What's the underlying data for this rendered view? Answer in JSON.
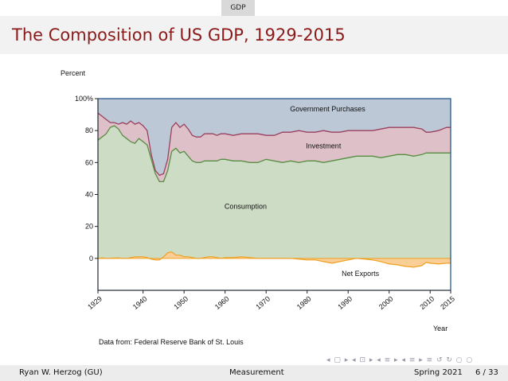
{
  "header": {
    "section": "GDP"
  },
  "slide": {
    "title": "The Composition of US GDP, 1929-2015"
  },
  "footer": {
    "author": "Ryan W. Herzog  (GU)",
    "topic": "Measurement",
    "date": "Spring 2021",
    "page": "6 / 33"
  },
  "navigation": {
    "symbols": "◂ ▢ ▸ ◂ ⊡ ▸ ◂ ≡ ▸ ◂ ≡ ▸  ≡  ↺ ↻ ○ ○"
  },
  "colors": {
    "government": "#bcc8d6",
    "investment": "#ddc0c8",
    "consumption": "#cddcc4",
    "net_exports_fill": "#f9cf97",
    "investment_line": "#9b3f5e",
    "consumption_line": "#5a8d44",
    "net_exports_line": "#f0a020",
    "frame": "#1a4c8a"
  },
  "chart_data": {
    "type": "area",
    "title": "",
    "xlabel": "Year",
    "ylabel": "Percent",
    "source_note": "Data from: Federal Reserve Bank of St. Louis",
    "xlim": [
      1929,
      2015
    ],
    "ylim": [
      -20,
      100
    ],
    "x_ticks": [
      "1929",
      "1940",
      "1950",
      "1960",
      "1970",
      "1980",
      "1990",
      "2000",
      "2010",
      "2015"
    ],
    "y_ticks": [
      "100%",
      "80",
      "60",
      "40",
      "20",
      "0"
    ],
    "x": [
      1929,
      1930,
      1931,
      1932,
      1933,
      1934,
      1935,
      1936,
      1937,
      1938,
      1939,
      1940,
      1941,
      1942,
      1943,
      1944,
      1945,
      1946,
      1947,
      1948,
      1949,
      1950,
      1951,
      1952,
      1953,
      1954,
      1955,
      1956,
      1957,
      1958,
      1959,
      1960,
      1962,
      1964,
      1966,
      1968,
      1970,
      1972,
      1974,
      1976,
      1978,
      1980,
      1982,
      1984,
      1986,
      1988,
      1990,
      1992,
      1994,
      1996,
      1998,
      2000,
      2002,
      2004,
      2006,
      2008,
      2009,
      2010,
      2012,
      2014,
      2015
    ],
    "series": [
      {
        "name": "Consumption",
        "values": [
          74,
          76,
          78,
          82,
          83,
          81,
          77,
          75,
          73,
          72,
          75,
          73,
          71,
          62,
          53,
          48,
          48,
          55,
          67,
          69,
          66,
          67,
          64,
          61,
          60,
          60,
          61,
          61,
          61,
          61,
          62,
          62,
          61,
          61,
          60,
          60,
          62,
          61,
          60,
          61,
          60,
          61,
          61,
          60,
          61,
          62,
          63,
          64,
          64,
          64,
          63,
          64,
          65,
          65,
          64,
          65,
          66,
          66,
          66,
          66,
          66
        ]
      },
      {
        "name": "Investment",
        "values": [
          91,
          89,
          87,
          85,
          85,
          84,
          85,
          84,
          86,
          84,
          85,
          83,
          80,
          65,
          55,
          52,
          53,
          62,
          82,
          85,
          82,
          84,
          81,
          77,
          76,
          76,
          78,
          78,
          78,
          77,
          78,
          78,
          77,
          78,
          78,
          78,
          77,
          77,
          79,
          79,
          80,
          79,
          79,
          80,
          79,
          79,
          80,
          80,
          80,
          80,
          81,
          82,
          82,
          82,
          82,
          81,
          79,
          79,
          80,
          82,
          82
        ]
      },
      {
        "name": "Net Exports",
        "values": [
          0,
          0.3,
          0,
          0,
          0.2,
          0.3,
          0,
          0,
          0.4,
          1,
          1,
          1,
          0.5,
          -0.5,
          -1,
          -1,
          1,
          3.5,
          4,
          2,
          2,
          1,
          1,
          0.5,
          0,
          0,
          0.5,
          1,
          1,
          0.5,
          0,
          0.5,
          0.5,
          1,
          0.5,
          0,
          0,
          0,
          0,
          0,
          -0.5,
          -1,
          -1,
          -2,
          -3,
          -2,
          -1,
          0,
          -0.5,
          -1,
          -2,
          -3.5,
          -4,
          -5,
          -5.5,
          -4.5,
          -2.5,
          -3,
          -3.5,
          -3,
          -3
        ]
      },
      {
        "name": "Government Purchases",
        "values": [
          100,
          100,
          100,
          100,
          100,
          100,
          100,
          100,
          100,
          100,
          100,
          100,
          100,
          100,
          100,
          100,
          100,
          100,
          100,
          100,
          100,
          100,
          100,
          100,
          100,
          100,
          100,
          100,
          100,
          100,
          100,
          100,
          100,
          100,
          100,
          100,
          100,
          100,
          100,
          100,
          100,
          100,
          100,
          100,
          100,
          100,
          100,
          100,
          100,
          100,
          100,
          100,
          100,
          100,
          100,
          100,
          100,
          100,
          100,
          100,
          100
        ]
      }
    ],
    "annotations": [
      {
        "text": "Government Purchases",
        "x": 1985,
        "y": 92
      },
      {
        "text": "Investment",
        "x": 1984,
        "y": 69
      },
      {
        "text": "Consumption",
        "x": 1965,
        "y": 31
      },
      {
        "text": "Net Exports",
        "x": 1993,
        "y": -11
      }
    ],
    "grid": false,
    "legend": "none"
  }
}
